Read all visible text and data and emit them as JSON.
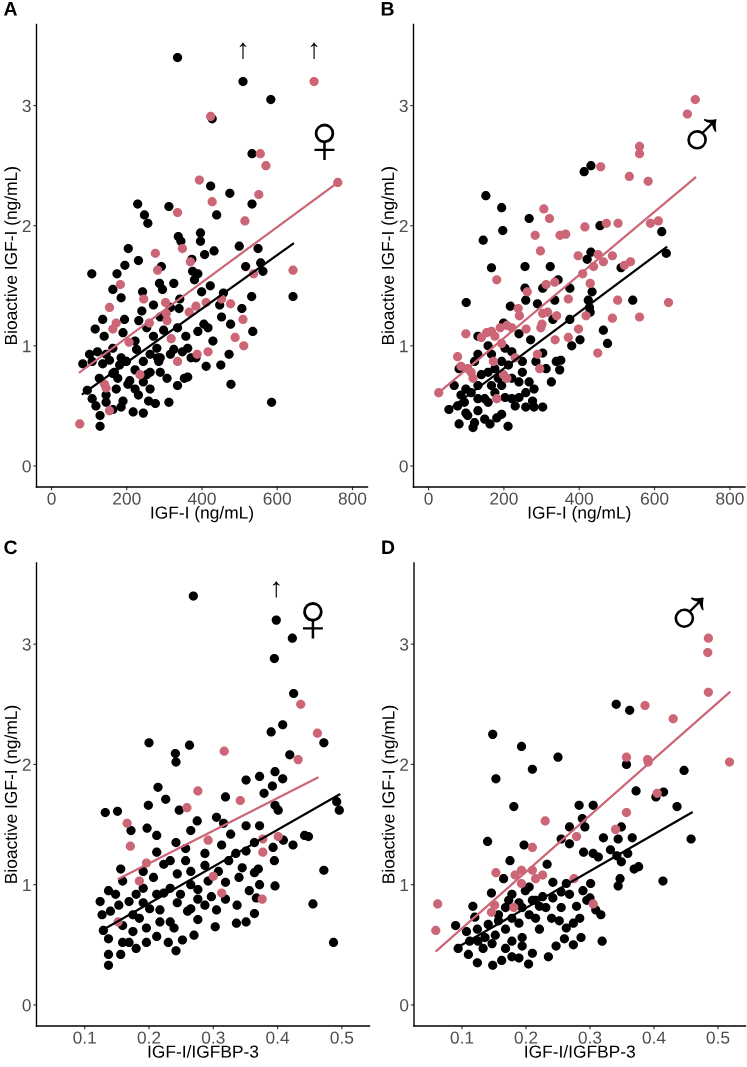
{
  "chart_data": [
    {
      "type": "scatter",
      "title": "A",
      "subtitle": "♀",
      "xlabel": "IGF-I (ng/mL)",
      "ylabel": "Bioactive IGF-I (ng/mL)",
      "xlim": [
        -40,
        840
      ],
      "xticks": [
        0,
        200,
        400,
        600,
        800
      ],
      "ylim": [
        -0.175,
        3.675
      ],
      "yticks": [
        0,
        1,
        2,
        3
      ],
      "series": [
        {
          "marker": "circle",
          "color": "#000000",
          "x": [
            335,
            509,
            583,
            427,
            533,
            423,
            474,
            533,
            229,
            312,
            247,
            256,
            439,
            396,
            337,
            344,
            396,
            204,
            499,
            549,
            407,
            432,
            231,
            373,
            195,
            292,
            516,
            556,
            562,
            107,
            174,
            375,
            389,
            380,
            287,
            325,
            422,
            163,
            242,
            295,
            399,
            185,
            532,
            642,
            457,
            271,
            341,
            447,
            240,
            506,
            339,
            136,
            194,
            232,
            405,
            452,
            476,
            535,
            116,
            140,
            190,
            271,
            357,
            298,
            335,
            389,
            122,
            163,
            226,
            280,
            325,
            362,
            83,
            108,
            154,
            181,
            244,
            282,
            384,
            472,
            411,
            450,
            95,
            127,
            176,
            208,
            253,
            289,
            335,
            362,
            477,
            108,
            145,
            190,
            231,
            262,
            118,
            163,
            217,
            244,
            276,
            312,
            129,
            129,
            585,
            145,
            167,
            199,
            222,
            262,
            307,
            353,
            101,
            136,
            163,
            185,
            203,
            222,
            244,
            262,
            289,
            316,
            348,
            371,
            416,
            429,
            172,
            145,
            185,
            258,
            285,
            222,
            253,
            289,
            316
          ],
          "values": [
            3.4,
            3.2,
            3.05,
            2.89,
            2.6,
            2.33,
            2.27,
            2.18,
            2.18,
            2.16,
            2.09,
            2.02,
            2.09,
            1.94,
            1.91,
            1.87,
            1.87,
            1.81,
            1.83,
            1.81,
            1.76,
            1.79,
            1.71,
            1.72,
            1.67,
            1.66,
            1.66,
            1.69,
            1.62,
            1.6,
            1.6,
            1.62,
            1.6,
            1.55,
            1.52,
            1.52,
            1.5,
            1.47,
            1.45,
            1.47,
            1.45,
            1.4,
            1.41,
            1.41,
            1.44,
            1.34,
            1.39,
            1.34,
            1.29,
            1.31,
            1.31,
            1.22,
            1.22,
            1.21,
            1.18,
            1.24,
            1.18,
            1.12,
            1.14,
            1.08,
            1.11,
            1.08,
            1.08,
            1.13,
            1.15,
            1.12,
            0.95,
            0.98,
            0.97,
            0.98,
            0.97,
            0.98,
            0.85,
            0.87,
            0.88,
            0.84,
            0.87,
            0.9,
            0.9,
            0.93,
            0.83,
            0.84,
            0.63,
            0.73,
            0.73,
            0.71,
            0.76,
            0.78,
            0.67,
            0.74,
            0.68,
            0.56,
            0.59,
            0.54,
            0.59,
            0.64,
            0.5,
            0.47,
            0.45,
            0.44,
            0.52,
            0.53,
            0.42,
            0.33,
            0.53,
            0.93,
            0.78,
            0.87,
            0.8,
            0.93,
            0.73,
            0.73,
            0.93,
            0.85,
            0.77,
            0.9,
            0.68,
            0.64,
            0.7,
            0.78,
            0.9,
            0.93,
            0.95,
            0.9,
            1.15,
            1.04,
            0.64,
            0.53,
            0.49,
            0.54,
            0.87,
            1.04,
            1.15,
            1.24,
            1.32
          ]
        },
        {
          "marker": "circle",
          "color": "#cc6677",
          "x": [
            75,
            154,
            141,
            145,
            235,
            154,
            163,
            172,
            183,
            206,
            245,
            260,
            276,
            282,
            303,
            307,
            305,
            318,
            335,
            335,
            348,
            369,
            366,
            384,
            387,
            393,
            411,
            416,
            423,
            427,
            452,
            476,
            488,
            509,
            511,
            514,
            537,
            551,
            555,
            570,
            642,
            698,
            761
          ],
          "values": [
            0.35,
            0.46,
            0.68,
            0.65,
            0.76,
            1.32,
            1.14,
            1.19,
            1.51,
            1.03,
            1.39,
            1.19,
            1.77,
            1.63,
            1.36,
            1.21,
            1.27,
            1.06,
            0.87,
            2.11,
            1.81,
            1.7,
            1.28,
            1.33,
            0.93,
            2.38,
            1.36,
            0.95,
            2.91,
            2.2,
            1.39,
            1.35,
            1.07,
            1.22,
            1.0,
            2.04,
            1.6,
            2.26,
            2.6,
            2.5,
            1.63,
            3.2,
            2.36
          ]
        },
        {
          "type": "line",
          "color": "#000000",
          "x": [
            83,
            642
          ],
          "values": [
            0.6,
            1.85
          ]
        },
        {
          "type": "line",
          "color": "#cc6677",
          "x": [
            75,
            761
          ],
          "values": [
            0.78,
            2.36
          ]
        }
      ],
      "annotations": [
        {
          "text": "↑",
          "x": 509,
          "y": 3.2
        },
        {
          "text": "↑",
          "x": 698,
          "y": 3.2
        }
      ]
    },
    {
      "type": "scatter",
      "title": "B",
      "subtitle": "♂",
      "xlabel": "IGF-I (ng/mL)",
      "ylabel": "Bioactive IGF-I (ng/mL)",
      "xlim": [
        -40,
        840
      ],
      "xticks": [
        0,
        200,
        400,
        600,
        800
      ],
      "ylim": [
        -0.175,
        3.675
      ],
      "yticks": [
        0,
        1,
        2,
        3
      ],
      "series": [
        {
          "marker": "circle",
          "color": "#000000",
          "x": [
            152,
            194,
            197,
            145,
            267,
            413,
            431,
            455,
            619,
            631,
            167,
            256,
            323,
            421,
            431,
            100,
            256,
            303,
            344,
            375,
            434,
            542,
            511,
            217,
            258,
            289,
            335,
            424,
            427,
            199,
            240,
            271,
            330,
            375,
            402,
            429,
            464,
            475,
            380,
            131,
            131,
            158,
            81,
            68,
            54,
            81,
            118,
            163,
            211,
            95,
            113,
            131,
            149,
            167,
            185,
            194,
            230,
            240,
            258,
            276,
            303,
            285,
            312,
            326,
            348,
            351,
            221,
            249,
            212,
            176,
            86,
            99,
            140,
            122,
            149,
            181,
            258,
            280,
            203,
            240,
            280,
            167,
            203,
            303,
            339,
            77,
            104,
            131,
            158,
            176,
            131,
            158,
            194,
            221,
            249,
            267,
            221,
            194,
            99,
            122
          ],
          "values": [
            2.25,
            2.15,
            1.96,
            1.88,
            2.06,
            2.45,
            2.5,
            2.0,
            1.95,
            1.77,
            1.65,
            1.66,
            1.66,
            1.72,
            1.78,
            1.36,
            1.48,
            1.48,
            1.55,
            1.48,
            1.45,
            1.38,
            1.65,
            1.33,
            1.38,
            1.35,
            1.38,
            1.38,
            1.32,
            1.19,
            1.1,
            1.05,
            1.22,
            1.22,
            1.05,
            1.28,
            1.13,
            1.02,
            1.0,
            1.08,
            0.93,
            1.0,
            0.81,
            0.67,
            0.47,
            0.35,
            0.32,
            0.35,
            0.33,
            0.53,
            0.61,
            0.46,
            0.56,
            0.67,
            0.73,
            0.43,
            0.5,
            0.7,
            0.61,
            0.54,
            0.49,
            0.87,
            0.81,
            0.7,
            0.8,
            0.88,
            0.95,
            0.87,
            0.84,
            0.81,
            0.59,
            0.44,
            0.76,
            0.87,
            0.39,
            0.4,
            0.49,
            0.49,
            0.57,
            0.57,
            0.64,
            0.93,
            0.98,
            0.94,
            0.87,
            0.5,
            0.42,
            0.56,
            0.53,
            0.61,
            0.67,
            0.78,
            0.67,
            0.73,
            0.78,
            0.7,
            0.56,
            0.87,
            0.64,
            0.36
          ]
        },
        {
          "marker": "circle",
          "color": "#cc6677",
          "x": [
            27,
            77,
            99,
            86,
            104,
            118,
            113,
            140,
            154,
            167,
            176,
            181,
            172,
            181,
            194,
            190,
            208,
            221,
            199,
            208,
            230,
            238,
            241,
            259,
            262,
            283,
            297,
            306,
            321,
            303,
            316,
            301,
            298,
            289,
            295,
            312,
            335,
            340,
            349,
            364,
            336,
            371,
            371,
            398,
            397,
            409,
            415,
            418,
            429,
            438,
            450,
            457,
            449,
            464,
            472,
            488,
            488,
            503,
            502,
            520,
            536,
            533,
            560,
            560,
            560,
            583,
            589,
            610,
            637,
            687,
            708
          ],
          "values": [
            0.61,
            0.91,
            1.1,
            0.83,
            0.81,
            0.73,
            0.78,
            1.07,
            1.11,
            1.12,
            1.08,
            1.55,
            0.87,
            0.56,
            1.02,
            1.15,
            1.17,
            1.15,
            0.76,
            0.73,
            0.9,
            1.31,
            1.25,
            1.14,
            1.45,
            1.92,
            1.79,
            2.14,
            2.06,
            1.27,
            1.28,
            1.18,
            1.15,
            0.93,
            0.81,
            1.51,
            1.53,
            1.25,
            1.92,
            1.93,
            1.05,
            1.39,
            1.07,
            1.14,
            1.75,
            1.6,
            1.99,
            1.25,
            1.52,
            1.66,
            1.76,
            2.49,
            0.94,
            1.7,
            2.02,
            1.75,
            1.23,
            2.02,
            1.38,
            1.67,
            1.7,
            2.41,
            2.66,
            2.6,
            1.24,
            2.37,
            2.02,
            2.04,
            1.36,
            2.93,
            3.05
          ]
        },
        {
          "type": "line",
          "color": "#000000",
          "x": [
            54,
            631
          ],
          "values": [
            0.47,
            1.82
          ]
        },
        {
          "type": "line",
          "color": "#cc6677",
          "x": [
            27,
            708
          ],
          "values": [
            0.61,
            2.4
          ]
        }
      ]
    },
    {
      "type": "scatter",
      "title": "C",
      "subtitle": "♀",
      "xlabel": "IGF-I/IGFBP-3",
      "ylabel": "Bioactive IGF-I (ng/mL)",
      "xlim": [
        0.025,
        0.543
      ],
      "xticks": [
        0.1,
        0.2,
        0.3,
        0.4,
        0.5
      ],
      "ylim": [
        -0.175,
        3.675
      ],
      "yticks": [
        0,
        1,
        2,
        3
      ],
      "series": [
        {
          "marker": "circle",
          "color": "#000000",
          "x": [
            0.269,
            0.398,
            0.423,
            0.395,
            0.425,
            0.408,
            0.39,
            0.472,
            0.2,
            0.263,
            0.241,
            0.242,
            0.419,
            0.396,
            0.214,
            0.351,
            0.372,
            0.392,
            0.408,
            0.226,
            0.319,
            0.379,
            0.199,
            0.132,
            0.151,
            0.247,
            0.396,
            0.401,
            0.492,
            0.496,
            0.275,
            0.305,
            0.316,
            0.351,
            0.372,
            0.197,
            0.172,
            0.212,
            0.265,
            0.327,
            0.442,
            0.448,
            0.364,
            0.409,
            0.424,
            0.242,
            0.257,
            0.313,
            0.212,
            0.335,
            0.351,
            0.393,
            0.156,
            0.191,
            0.223,
            0.257,
            0.287,
            0.324,
            0.345,
            0.37,
            0.395,
            0.472,
            0.159,
            0.207,
            0.244,
            0.265,
            0.319,
            0.364,
            0.372,
            0.396,
            0.137,
            0.18,
            0.223,
            0.276,
            0.297,
            0.356,
            0.124,
            0.153,
            0.191,
            0.244,
            0.287,
            0.319,
            0.337,
            0.367,
            0.455,
            0.14,
            0.175,
            0.217,
            0.265,
            0.305,
            0.364,
            0.129,
            0.159,
            0.196,
            0.233,
            0.276,
            0.303,
            0.336,
            0.351,
            0.137,
            0.169,
            0.212,
            0.23,
            0.252,
            0.27,
            0.156,
            0.18,
            0.242,
            0.137,
            0.137,
            0.487,
            0.127,
            0.148,
            0.169,
            0.185,
            0.201,
            0.212,
            0.233,
            0.249,
            0.26,
            0.276,
            0.292,
            0.308,
            0.34,
            0.175,
            0.196,
            0.217,
            0.239,
            0.159,
            0.191,
            0.265,
            0.287,
            0.233
          ],
          "values": [
            3.4,
            3.2,
            3.05,
            2.88,
            2.59,
            2.33,
            2.27,
            2.18,
            2.18,
            2.16,
            2.09,
            2.02,
            2.08,
            1.94,
            1.81,
            1.87,
            1.9,
            1.82,
            1.88,
            1.71,
            1.73,
            1.76,
            1.66,
            1.6,
            1.61,
            1.62,
            1.66,
            1.62,
            1.69,
            1.62,
            1.53,
            1.56,
            1.51,
            1.49,
            1.49,
            1.47,
            1.45,
            1.41,
            1.45,
            1.42,
            1.41,
            1.4,
            1.35,
            1.37,
            1.33,
            1.35,
            1.3,
            1.33,
            1.27,
            1.26,
            1.28,
            1.31,
            1.13,
            1.11,
            1.17,
            1.2,
            1.16,
            1.2,
            1.14,
            1.13,
            1.2,
            1.12,
            1.03,
            1.06,
            1.09,
            1.0,
            1.02,
            1.1,
            1.0,
            0.99,
            0.95,
            0.92,
            0.93,
            0.96,
            0.9,
            0.95,
            0.86,
            0.83,
            0.85,
            0.85,
            0.83,
            0.88,
            0.83,
            0.89,
            0.84,
            0.78,
            0.75,
            0.79,
            0.8,
            0.79,
            0.76,
            0.62,
            0.66,
            0.64,
            0.69,
            0.71,
            0.65,
            0.68,
            0.69,
            0.55,
            0.52,
            0.57,
            0.52,
            0.54,
            0.58,
            0.42,
            0.47,
            0.45,
            0.42,
            0.33,
            0.52,
            0.75,
            0.92,
            0.86,
            0.72,
            0.8,
            0.92,
            0.97,
            0.92,
            0.78,
            0.88,
            1.03,
            1.11,
            1.06,
            0.61,
            0.52,
            0.69,
            0.64,
            0.52,
            0.97,
            1.11,
            1.26,
            1.2
          ]
        },
        {
          "marker": "circle",
          "color": "#cc6677",
          "x": [
            0.152,
            0.166,
            0.171,
            0.185,
            0.196,
            0.259,
            0.276,
            0.292,
            0.3,
            0.313,
            0.317,
            0.342,
            0.376,
            0.377,
            0.377,
            0.401,
            0.432,
            0.436,
            0.462
          ],
          "values": [
            0.69,
            1.51,
            1.32,
            1.03,
            1.18,
            1.64,
            1.78,
            1.37,
            1.07,
            0.93,
            2.11,
            1.7,
            0.88,
            1.27,
            1.38,
            1.4,
            2.04,
            2.5,
            2.26
          ]
        },
        {
          "type": "line",
          "color": "#000000",
          "x": [
            0.13,
            0.496
          ],
          "values": [
            0.63,
            1.75
          ]
        },
        {
          "type": "line",
          "color": "#cc6677",
          "x": [
            0.153,
            0.462
          ],
          "values": [
            1.05,
            1.89
          ]
        }
      ],
      "annotations": [
        {
          "text": "↑",
          "x": 0.398,
          "y": 3.2
        }
      ]
    },
    {
      "type": "scatter",
      "title": "D",
      "subtitle": "♂",
      "xlabel": "IGF-I/IGFBP-3",
      "ylabel": "Bioactive IGF-I (ng/mL)",
      "xlim": [
        0.025,
        0.543
      ],
      "xticks": [
        0.1,
        0.2,
        0.3,
        0.4,
        0.5
      ],
      "ylim": [
        -0.175,
        3.675
      ],
      "yticks": [
        0,
        1,
        2,
        3
      ],
      "series": [
        {
          "marker": "circle",
          "color": "#000000",
          "x": [
            0.148,
            0.193,
            0.21,
            0.153,
            0.25,
            0.341,
            0.362,
            0.357,
            0.447,
            0.372,
            0.415,
            0.403,
            0.436,
            0.181,
            0.283,
            0.305,
            0.288,
            0.292,
            0.268,
            0.349,
            0.14,
            0.255,
            0.268,
            0.321,
            0.344,
            0.366,
            0.458,
            0.197,
            0.29,
            0.305,
            0.313,
            0.332,
            0.342,
            0.359,
            0.349,
            0.369,
            0.376,
            0.233,
            0.175,
            0.347,
            0.344,
            0.414,
            0.301,
            0.242,
            0.165,
            0.146,
            0.205,
            0.268,
            0.289,
            0.226,
            0.117,
            0.12,
            0.09,
            0.107,
            0.124,
            0.094,
            0.112,
            0.124,
            0.148,
            0.204,
            0.235,
            0.247,
            0.26,
            0.274,
            0.286,
            0.319,
            0.317,
            0.309,
            0.263,
            0.274,
            0.279,
            0.255,
            0.24,
            0.221,
            0.21,
            0.194,
            0.178,
            0.162,
            0.133,
            0.136,
            0.152,
            0.168,
            0.189,
            0.205,
            0.221,
            0.168,
            0.157,
            0.178,
            0.189,
            0.215,
            0.194,
            0.178,
            0.147,
            0.255,
            0.263,
            0.3,
            0.11,
            0.125,
            0.141,
            0.157,
            0.173,
            0.178,
            0.194,
            0.199,
            0.21,
            0.215,
            0.231,
            0.242,
            0.252,
            0.284,
            0.295,
            0.168,
            0.189
          ],
          "values": [
            2.25,
            2.15,
            1.96,
            1.88,
            2.06,
            2.5,
            2.45,
            2.0,
            1.95,
            1.78,
            1.77,
            1.73,
            1.65,
            1.65,
            1.66,
            1.66,
            1.55,
            1.48,
            1.48,
            1.48,
            1.36,
            1.38,
            1.34,
            1.39,
            1.38,
            1.39,
            1.38,
            1.33,
            1.27,
            1.26,
            1.23,
            1.29,
            1.24,
            1.26,
            1.19,
            1.13,
            1.15,
            1.17,
            1.2,
            1.05,
            0.99,
            1.03,
            1.01,
            1.02,
            1.05,
            0.93,
            0.98,
            0.92,
            0.95,
            0.9,
            0.82,
            0.73,
            0.66,
            0.61,
            0.63,
            0.47,
            0.53,
            0.35,
            0.33,
            0.34,
            0.4,
            0.49,
            0.55,
            0.5,
            0.56,
            0.53,
            0.75,
            0.79,
            0.64,
            0.68,
            0.82,
            0.81,
            0.72,
            0.63,
            0.43,
            0.49,
            0.4,
            0.37,
            0.47,
            0.56,
            0.58,
            0.63,
            0.68,
            0.75,
            0.82,
            0.81,
            0.7,
            0.92,
            0.85,
            0.87,
            0.56,
            0.53,
            0.51,
            0.94,
            1.01,
            0.89,
            0.42,
            0.53,
            0.67,
            0.75,
            0.87,
            0.72,
            0.81,
            0.95,
            0.87,
            0.72,
            0.81,
            0.89,
            0.7,
            0.72,
            0.87,
            0.47,
            0.39
          ]
        },
        {
          "marker": "circle",
          "color": "#cc6677",
          "x": [
            0.059,
            0.062,
            0.146,
            0.151,
            0.153,
            0.181,
            0.183,
            0.193,
            0.193,
            0.21,
            0.21,
            0.215,
            0.226,
            0.23,
            0.275,
            0.279,
            0.305,
            0.34,
            0.357,
            0.357,
            0.386,
            0.39,
            0.391,
            0.405,
            0.43,
            0.485,
            0.484,
            0.485,
            0.518
          ],
          "values": [
            0.62,
            0.84,
            0.77,
            0.83,
            1.1,
            0.81,
            1.08,
            1.12,
            1.01,
            1.31,
            1.12,
            1.05,
            1.08,
            1.53,
            1.05,
            1.4,
            0.84,
            1.46,
            1.6,
            2.06,
            2.49,
            2.04,
            2.02,
            1.76,
            2.38,
            3.05,
            2.93,
            2.6,
            2.02
          ]
        },
        {
          "type": "line",
          "color": "#000000",
          "x": [
            0.09,
            0.459
          ],
          "values": [
            0.47,
            1.6
          ]
        },
        {
          "type": "line",
          "color": "#cc6677",
          "x": [
            0.06,
            0.518
          ],
          "values": [
            0.45,
            2.6
          ]
        }
      ]
    }
  ]
}
